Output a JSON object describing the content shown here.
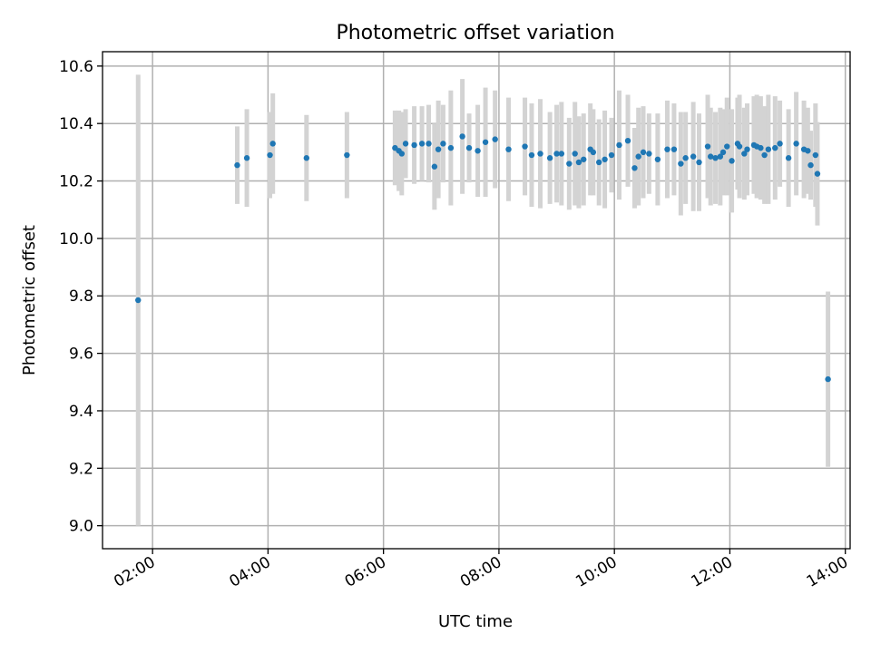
{
  "chart_data": {
    "type": "scatter",
    "title": "Photometric offset variation",
    "xlabel": "UTC time",
    "ylabel": "Photometric offset",
    "xlim": [
      "01:08",
      "14:05"
    ],
    "ylim": [
      8.92,
      10.65
    ],
    "x_ticks": [
      "02:00",
      "04:00",
      "06:00",
      "08:00",
      "10:00",
      "12:00",
      "14:00"
    ],
    "y_ticks": [
      "9.0",
      "9.2",
      "9.4",
      "9.6",
      "9.8",
      "10.0",
      "10.2",
      "10.4",
      "10.6"
    ],
    "grid": true,
    "point_color": "#1f77b4",
    "errorbar_color": "#d3d3d3",
    "series": [
      {
        "x": [
          "01:45",
          "03:28",
          "03:38",
          "04:02",
          "04:05",
          "04:40",
          "05:22",
          "06:12",
          "06:16",
          "06:19",
          "06:23",
          "06:32",
          "06:40",
          "06:47",
          "06:53",
          "06:57",
          "07:02",
          "07:10",
          "07:22",
          "07:29",
          "07:38",
          "07:46",
          "07:56",
          "08:10",
          "08:27",
          "08:34",
          "08:43",
          "08:53",
          "09:00",
          "09:05",
          "09:13",
          "09:19",
          "09:23",
          "09:28",
          "09:35",
          "09:38",
          "09:44",
          "09:50",
          "09:57",
          "10:05",
          "10:14",
          "10:21",
          "10:25",
          "10:30",
          "10:36",
          "10:45",
          "10:55",
          "11:02",
          "11:09",
          "11:14",
          "11:22",
          "11:28",
          "11:37",
          "11:40",
          "11:45",
          "11:50",
          "11:53",
          "11:57",
          "12:02",
          "12:08",
          "12:10",
          "12:15",
          "12:18",
          "12:25",
          "12:28",
          "12:32",
          "12:36",
          "12:40",
          "12:47",
          "12:52",
          "13:01",
          "13:09",
          "13:17",
          "13:21",
          "13:24",
          "13:29",
          "13:31",
          "13:42"
        ],
        "y": [
          9.785,
          10.255,
          10.28,
          10.29,
          10.33,
          10.28,
          10.29,
          10.315,
          10.305,
          10.295,
          10.33,
          10.325,
          10.33,
          10.33,
          10.25,
          10.31,
          10.33,
          10.315,
          10.355,
          10.315,
          10.305,
          10.335,
          10.345,
          10.31,
          10.32,
          10.29,
          10.295,
          10.28,
          10.295,
          10.295,
          10.26,
          10.295,
          10.265,
          10.275,
          10.31,
          10.3,
          10.265,
          10.275,
          10.29,
          10.325,
          10.34,
          10.245,
          10.285,
          10.3,
          10.295,
          10.275,
          10.31,
          10.31,
          10.26,
          10.28,
          10.285,
          10.265,
          10.32,
          10.285,
          10.28,
          10.285,
          10.3,
          10.32,
          10.27,
          10.33,
          10.32,
          10.295,
          10.31,
          10.325,
          10.32,
          10.315,
          10.29,
          10.31,
          10.315,
          10.33,
          10.28,
          10.33,
          10.31,
          10.305,
          10.255,
          10.29,
          10.225,
          9.51
        ],
        "yerr": [
          0.785,
          0.135,
          0.17,
          0.15,
          0.175,
          0.15,
          0.15,
          0.13,
          0.14,
          0.145,
          0.12,
          0.135,
          0.13,
          0.135,
          0.15,
          0.17,
          0.135,
          0.2,
          0.2,
          0.12,
          0.16,
          0.19,
          0.17,
          0.18,
          0.17,
          0.18,
          0.19,
          0.16,
          0.17,
          0.18,
          0.16,
          0.18,
          0.16,
          0.16,
          0.16,
          0.15,
          0.15,
          0.17,
          0.13,
          0.19,
          0.16,
          0.14,
          0.17,
          0.16,
          0.14,
          0.16,
          0.17,
          0.16,
          0.18,
          0.16,
          0.19,
          0.17,
          0.18,
          0.17,
          0.16,
          0.17,
          0.15,
          0.17,
          0.18,
          0.16,
          0.18,
          0.16,
          0.16,
          0.17,
          0.18,
          0.18,
          0.17,
          0.19,
          0.18,
          0.15,
          0.17,
          0.18,
          0.17,
          0.15,
          0.12,
          0.18,
          0.18,
          0.305
        ]
      }
    ]
  }
}
